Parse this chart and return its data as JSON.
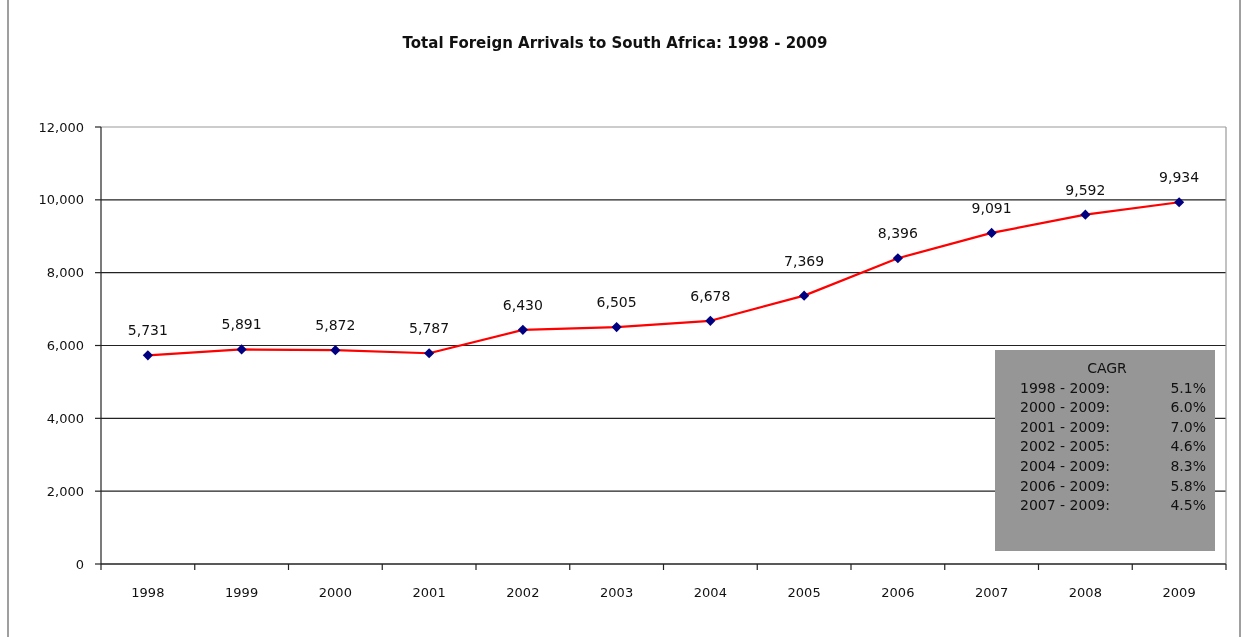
{
  "chart_data": {
    "type": "line",
    "title": "Total Foreign Arrivals to South Africa: 1998 - 2009",
    "categories": [
      "1998",
      "1999",
      "2000",
      "2001",
      "2002",
      "2003",
      "2004",
      "2005",
      "2006",
      "2007",
      "2008",
      "2009"
    ],
    "series": [
      {
        "color": "#ff0000",
        "values": [
          5731,
          5891,
          5872,
          5787,
          6430,
          6505,
          6678,
          7369,
          8396,
          9091,
          9592,
          9934
        ],
        "value_labels": [
          "5,731",
          "5,891",
          "5,872",
          "5,787",
          "6,430",
          "6,505",
          "6,678",
          "7,369",
          "8,396",
          "9,091",
          "9,592",
          "9,934"
        ]
      }
    ],
    "ylim": [
      0,
      12000
    ],
    "yticks": [
      {
        "value": 0,
        "label": "0"
      },
      {
        "value": 2000,
        "label": "2,000"
      },
      {
        "value": 4000,
        "label": "4,000"
      },
      {
        "value": 6000,
        "label": "6,000"
      },
      {
        "value": 8000,
        "label": "8,000"
      },
      {
        "value": 10000,
        "label": "10,000"
      },
      {
        "value": 12000,
        "label": "12,000"
      }
    ],
    "grid": "y",
    "marker": "diamond",
    "line_style": "solid",
    "annotations": [
      "CAGR",
      "1998 - 2009: 5.1%",
      "2000 - 2009: 6.0%",
      "2001 - 2009: 7.0%",
      "2002 - 2005: 4.6%",
      "2004 - 2009: 8.3%",
      "2006 - 2009: 5.8%",
      "2007 - 2009: 4.5%"
    ]
  }
}
